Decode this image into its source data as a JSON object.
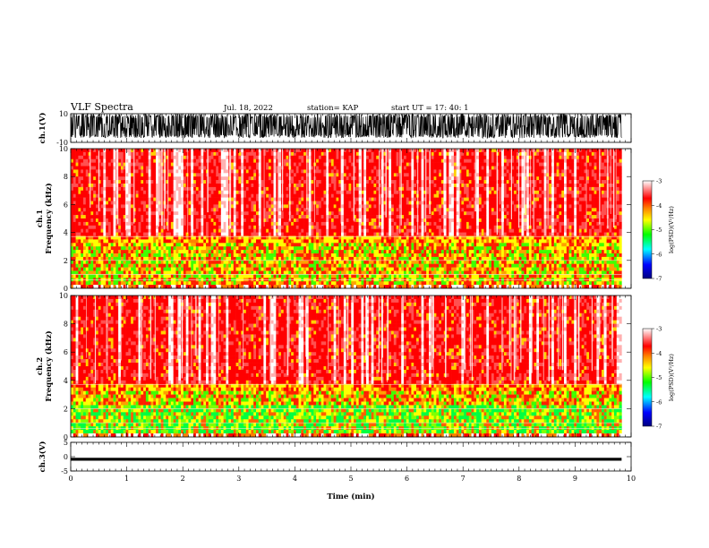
{
  "header": {
    "title": "VLF Spectra",
    "date": "Jul. 18, 2022",
    "station": "station= KAP",
    "start": "start UT = 17: 40: 1"
  },
  "chart_data": [
    {
      "type": "line",
      "id": "ch1-waveform",
      "ylabel": "ch.1(V)",
      "ylim": [
        -10,
        10
      ],
      "yticks": [
        "10",
        "-10"
      ],
      "xlim": [
        0,
        10
      ],
      "note": "dense waveform, mostly between about -6 and 10 V"
    },
    {
      "type": "heatmap",
      "id": "ch1-spectrogram",
      "ylabel": "ch.1\nFrequency (kHz)",
      "ylim": [
        0,
        10
      ],
      "yticks": [
        "0",
        "2",
        "4",
        "6",
        "8",
        "10"
      ],
      "xlim": [
        0,
        10
      ],
      "colorbar": {
        "label": "log(PSD)(V²/Hz)",
        "range": [
          -7,
          -3
        ],
        "ticks": [
          "-3",
          "-4",
          "-5",
          "-6",
          "-7"
        ]
      }
    },
    {
      "type": "heatmap",
      "id": "ch2-spectrogram",
      "ylabel": "ch.2\nFrequency (kHz)",
      "ylim": [
        0,
        10
      ],
      "yticks": [
        "0",
        "2",
        "4",
        "6",
        "8",
        "10"
      ],
      "xlim": [
        0,
        10
      ],
      "colorbar": {
        "label": "log(PSD)(V²/Hz)",
        "range": [
          -7,
          -3
        ],
        "ticks": [
          "-3",
          "-4",
          "-5",
          "-6",
          "-7"
        ]
      }
    },
    {
      "type": "line",
      "id": "ch3-waveform",
      "ylabel": "ch.3(V)",
      "ylim": [
        -5,
        5
      ],
      "yticks": [
        "5",
        "0",
        "-5"
      ],
      "xlim": [
        0,
        10
      ],
      "note": "near-constant thick trace around -1 V"
    }
  ],
  "xaxis": {
    "label": "Time (min)",
    "ticks": [
      "0",
      "1",
      "2",
      "3",
      "4",
      "5",
      "6",
      "7",
      "8",
      "9",
      "10"
    ]
  },
  "colors": {
    "psd_scale": [
      "#000080",
      "#0000ff",
      "#00ffff",
      "#00ff00",
      "#ffff00",
      "#ff8000",
      "#ff0000",
      "#ffffff"
    ],
    "trace": "#000000"
  }
}
